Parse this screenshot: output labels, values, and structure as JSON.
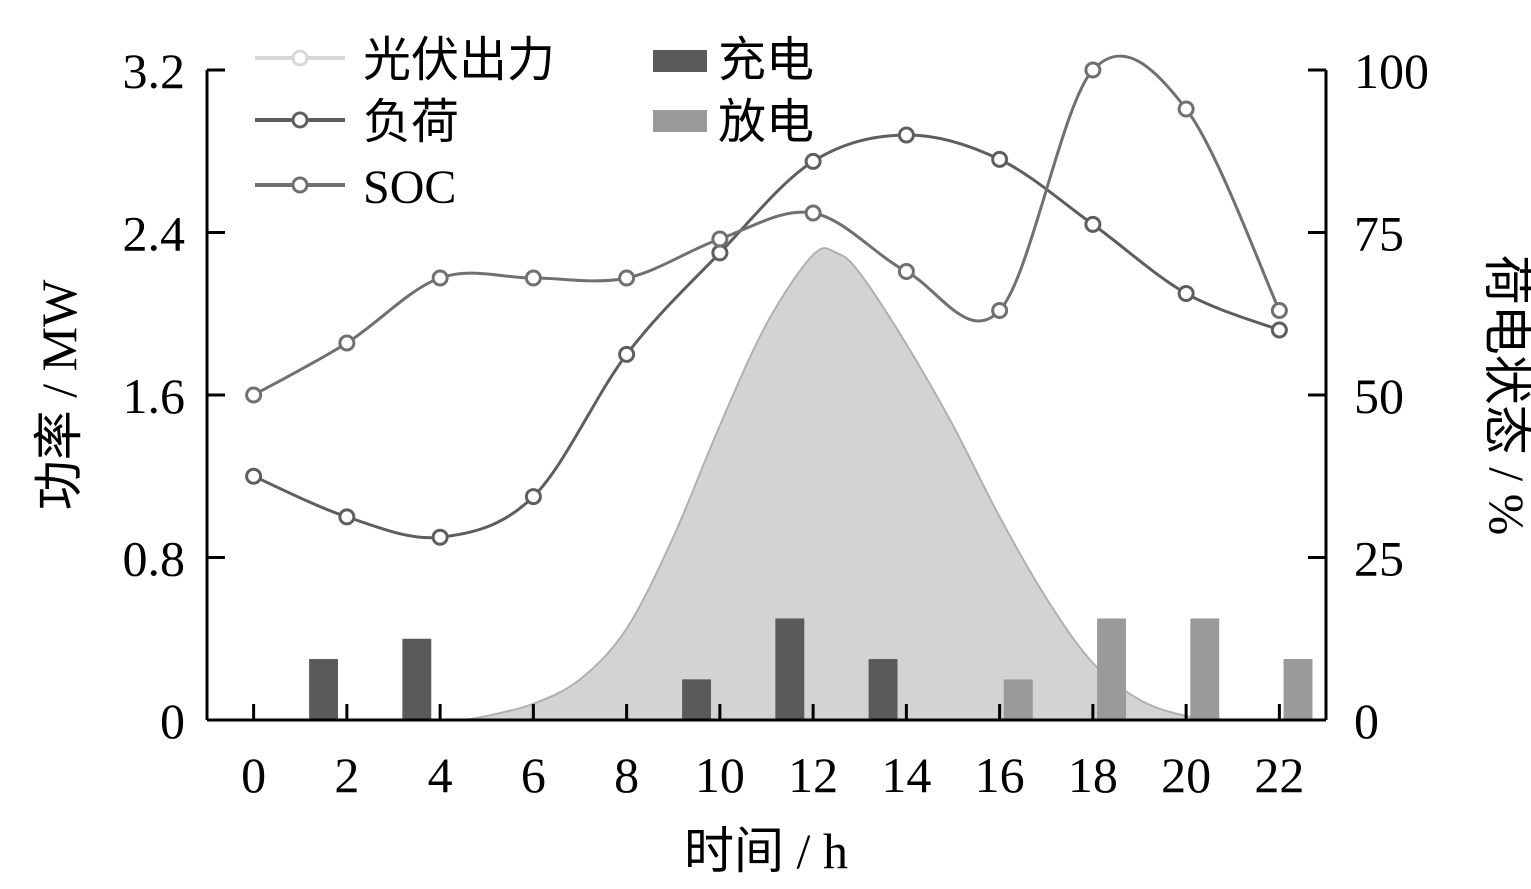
{
  "chart_data": {
    "type": "bar",
    "xlabel": "时间 / h",
    "ylabel_left": "功率 / MW",
    "ylabel_right": "荷电状态 / %",
    "x_ticks": [
      0,
      2,
      4,
      6,
      8,
      10,
      12,
      14,
      16,
      18,
      20,
      22
    ],
    "xlim": [
      -1,
      23
    ],
    "ylim_left": [
      0,
      3.2
    ],
    "ylim_right": [
      0,
      100
    ],
    "y_ticks_left": [
      "0",
      "0.8",
      "1.6",
      "2.4",
      "3.2"
    ],
    "y_ticks_right": [
      "0",
      "25",
      "50",
      "75",
      "100"
    ],
    "legend": {
      "pv": "光伏出力",
      "load": "负荷",
      "soc": "SOC",
      "charge": "充电",
      "discharge": "放电"
    },
    "colors": {
      "pv_fill": "#d3d3d3",
      "pv_line": "#b0b0b0",
      "load": "#5e5e5e",
      "soc": "#707070",
      "charge": "#5a5a5a",
      "discharge": "#9a9a9a",
      "axis": "#000000"
    },
    "pv_output": {
      "x": [
        4.5,
        5,
        6,
        7,
        8,
        9,
        10,
        11,
        12,
        12.5,
        13,
        14,
        15,
        16,
        17,
        18,
        19,
        20,
        21
      ],
      "y": [
        0,
        0.02,
        0.08,
        0.2,
        0.45,
        0.9,
        1.45,
        1.95,
        2.29,
        2.3,
        2.2,
        1.85,
        1.45,
        1.0,
        0.6,
        0.28,
        0.1,
        0.02,
        0
      ]
    },
    "load": {
      "x": [
        0,
        2,
        4,
        6,
        8,
        10,
        12,
        14,
        16,
        18,
        20,
        22
      ],
      "y": [
        1.2,
        1.0,
        0.9,
        1.1,
        1.8,
        2.3,
        2.75,
        2.88,
        2.76,
        2.44,
        2.1,
        1.92
      ]
    },
    "soc": {
      "x": [
        0,
        2,
        4,
        6,
        8,
        10,
        12,
        14,
        16,
        18,
        20,
        22
      ],
      "y": [
        50,
        58,
        68,
        68,
        68,
        74,
        78,
        69,
        63,
        100,
        94,
        63
      ]
    },
    "charge": {
      "x": [
        1.5,
        3.5,
        9.5,
        11.5,
        13.5
      ],
      "y": [
        0.3,
        0.4,
        0.2,
        0.5,
        0.3
      ]
    },
    "discharge": {
      "x": [
        16.4,
        18.4,
        20.4,
        22.4
      ],
      "y": [
        0.2,
        0.5,
        0.5,
        0.3
      ]
    }
  }
}
